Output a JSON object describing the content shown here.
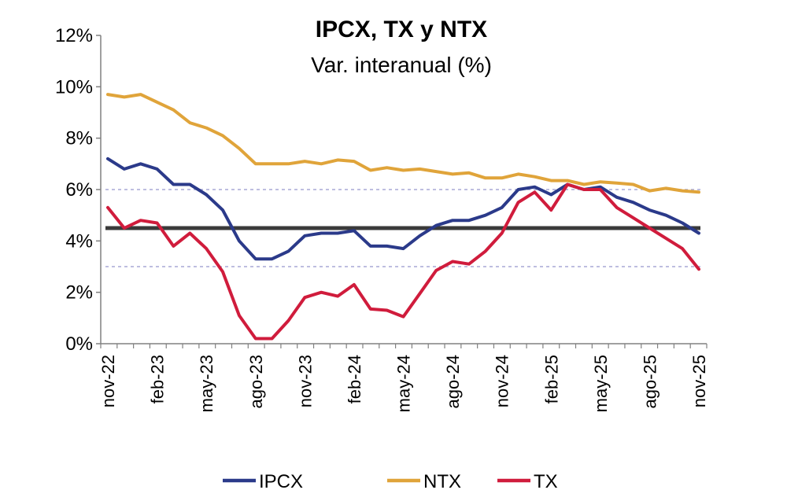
{
  "chart_data": {
    "type": "line",
    "title": "IPCX, TX y NTX",
    "subtitle": "Var. interanual (%)",
    "xlabel": "",
    "ylabel": "",
    "ylim": [
      0,
      12
    ],
    "y_ticks": [
      "0%",
      "2%",
      "4%",
      "6%",
      "8%",
      "10%",
      "12%"
    ],
    "y_tick_values": [
      0,
      2,
      4,
      6,
      8,
      10,
      12
    ],
    "x_tick_labels": [
      "nov-22",
      "feb-23",
      "may-23",
      "ago-23",
      "nov-23",
      "feb-24",
      "may-24",
      "ago-24",
      "nov-24",
      "feb-25",
      "may-25",
      "ago-25",
      "nov-25"
    ],
    "x_tick_indices": [
      0,
      3,
      6,
      9,
      12,
      15,
      18,
      21,
      24,
      27,
      30,
      33,
      36
    ],
    "categories": [
      "nov-22",
      "dic-22",
      "ene-23",
      "feb-23",
      "mar-23",
      "abr-23",
      "may-23",
      "jun-23",
      "jul-23",
      "ago-23",
      "sep-23",
      "oct-23",
      "nov-23",
      "dic-23",
      "ene-24",
      "feb-24",
      "mar-24",
      "abr-24",
      "may-24",
      "jun-24",
      "jul-24",
      "ago-24",
      "sep-24",
      "oct-24",
      "nov-24",
      "dic-24",
      "ene-25",
      "feb-25",
      "mar-25",
      "abr-25",
      "may-25",
      "jun-25",
      "jul-25",
      "ago-25",
      "sep-25",
      "oct-25",
      "nov-25"
    ],
    "series": [
      {
        "name": "IPCX",
        "color": "#2b3a8a",
        "values": [
          7.2,
          6.8,
          7.0,
          6.8,
          6.2,
          6.2,
          5.8,
          5.2,
          4.0,
          3.3,
          3.3,
          3.6,
          4.2,
          4.3,
          4.3,
          4.4,
          3.8,
          3.8,
          3.7,
          4.2,
          4.6,
          4.8,
          4.8,
          5.0,
          5.3,
          6.0,
          6.1,
          5.8,
          6.2,
          6.0,
          6.1,
          5.7,
          5.5,
          5.2,
          5.0,
          4.7,
          4.3
        ]
      },
      {
        "name": "NTX",
        "color": "#e0a43a",
        "values": [
          9.7,
          9.6,
          9.7,
          9.4,
          9.1,
          8.6,
          8.4,
          8.1,
          7.6,
          7.0,
          7.0,
          7.0,
          7.1,
          7.0,
          7.15,
          7.1,
          6.75,
          6.85,
          6.75,
          6.8,
          6.7,
          6.6,
          6.65,
          6.45,
          6.45,
          6.6,
          6.5,
          6.35,
          6.35,
          6.2,
          6.3,
          6.25,
          6.2,
          5.95,
          6.05,
          5.95,
          5.9
        ]
      },
      {
        "name": "TX",
        "color": "#d01c3c",
        "values": [
          5.3,
          4.5,
          4.8,
          4.7,
          3.8,
          4.3,
          3.7,
          2.8,
          1.1,
          0.2,
          0.2,
          0.9,
          1.8,
          2.0,
          1.85,
          2.3,
          1.35,
          1.3,
          1.05,
          1.95,
          2.85,
          3.2,
          3.1,
          3.6,
          4.3,
          5.5,
          5.9,
          5.2,
          6.2,
          6.0,
          6.0,
          5.3,
          4.9,
          4.5,
          4.1,
          3.7,
          2.9
        ]
      }
    ],
    "reference_lines": [
      {
        "value": 4.5,
        "style": "solid"
      },
      {
        "value": 6,
        "style": "dotted"
      },
      {
        "value": 3,
        "style": "dotted"
      }
    ],
    "legend_position": "bottom",
    "colors": {
      "reference_solid": "#3a3a3a",
      "reference_dotted": "#a9a9d6",
      "axis": "#808080"
    }
  }
}
